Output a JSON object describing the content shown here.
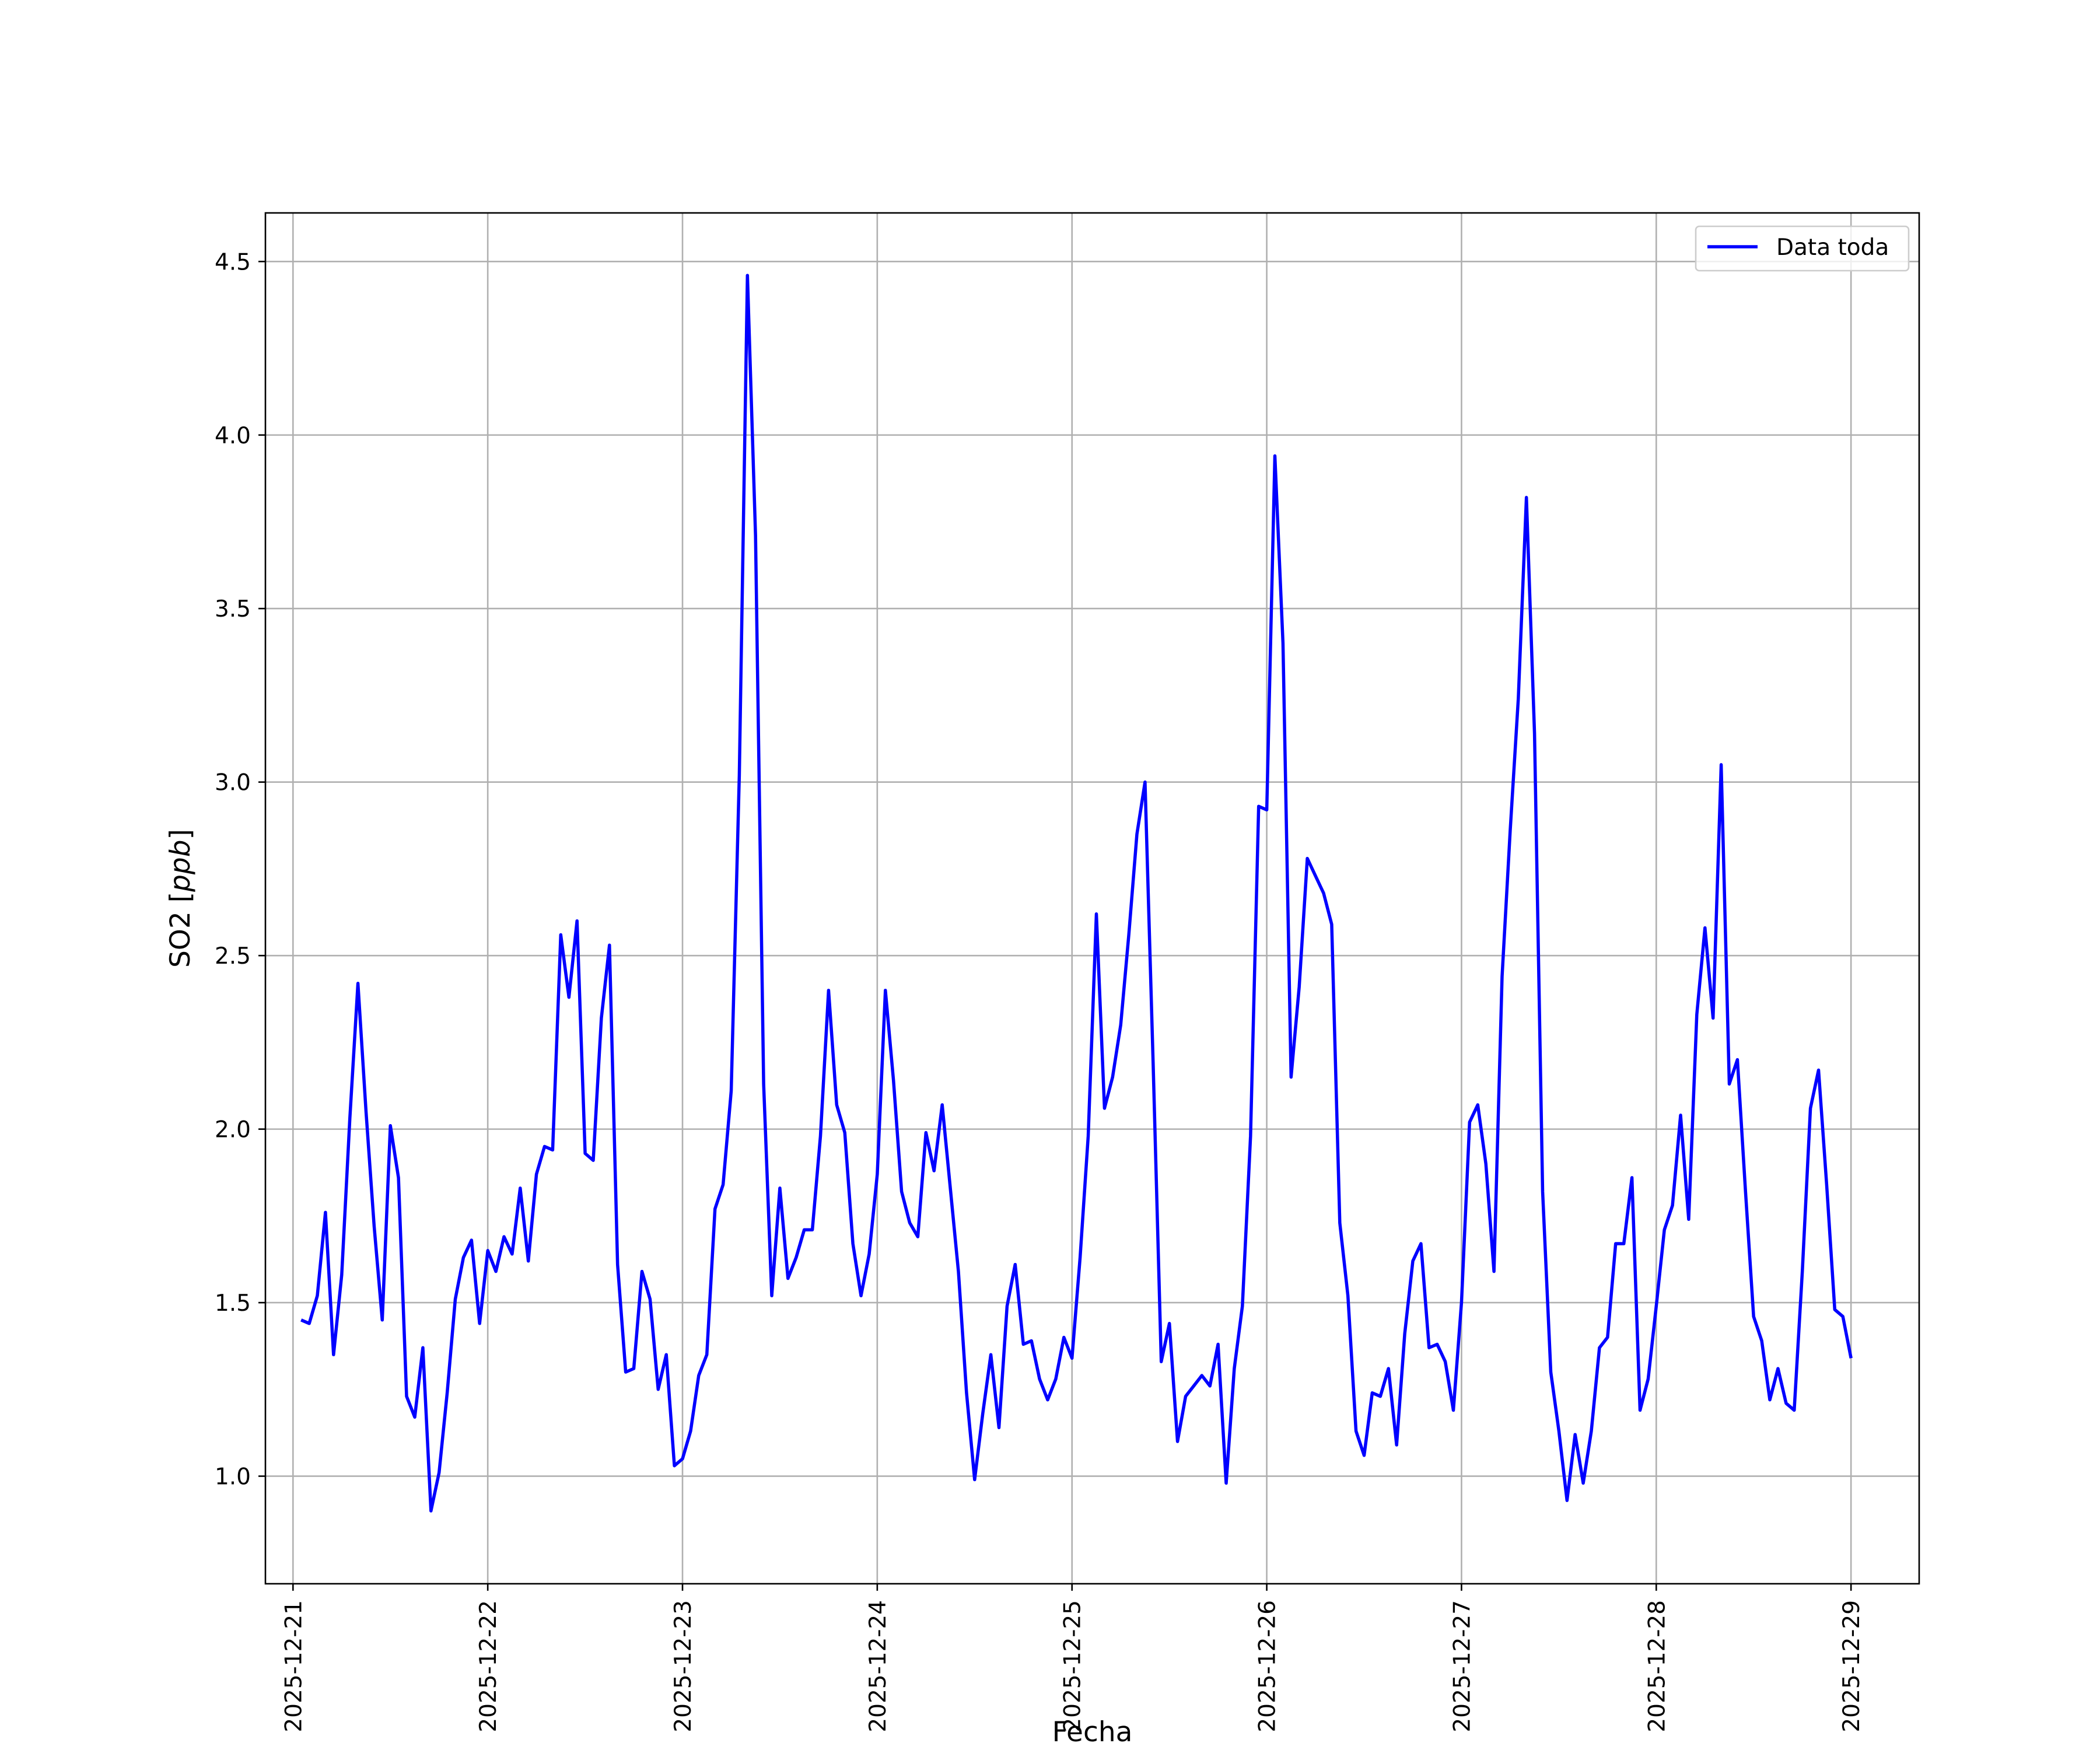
{
  "chart_data": {
    "type": "line",
    "title": "",
    "xlabel": "Fecha",
    "ylabel": "SO2 [ppb]",
    "ylabel_parts": {
      "plain": "SO2 [",
      "italic": "ppb",
      "close": "]"
    },
    "xlim": [
      "2025-12-20T20:36",
      "2025-12-29T08:24"
    ],
    "ylim": [
      0.69,
      4.64
    ],
    "grid": true,
    "legend_position": "upper-right",
    "x_ticks": [
      "2025-12-21",
      "2025-12-22",
      "2025-12-23",
      "2025-12-24",
      "2025-12-25",
      "2025-12-26",
      "2025-12-27",
      "2025-12-28",
      "2025-12-29"
    ],
    "y_ticks": [
      1.0,
      1.5,
      2.0,
      2.5,
      3.0,
      3.5,
      4.0,
      4.5
    ],
    "y_tick_labels": [
      "1.0",
      "1.5",
      "2.0",
      "2.5",
      "3.0",
      "3.5",
      "4.0",
      "4.5"
    ],
    "colors": {
      "series": "#0000ff",
      "grid": "#b0b0b0"
    },
    "series": [
      {
        "name": "Data toda",
        "color": "#0000ff",
        "x": [
          "2025-12-21T01:00",
          "2025-12-21T02:00",
          "2025-12-21T03:00",
          "2025-12-21T04:00",
          "2025-12-21T05:00",
          "2025-12-21T06:00",
          "2025-12-21T07:00",
          "2025-12-21T08:00",
          "2025-12-21T09:00",
          "2025-12-21T10:00",
          "2025-12-21T11:00",
          "2025-12-21T12:00",
          "2025-12-21T13:00",
          "2025-12-21T14:00",
          "2025-12-21T15:00",
          "2025-12-21T16:00",
          "2025-12-21T17:00",
          "2025-12-21T18:00",
          "2025-12-21T19:00",
          "2025-12-21T20:00",
          "2025-12-21T21:00",
          "2025-12-21T22:00",
          "2025-12-21T23:00",
          "2025-12-22T00:00",
          "2025-12-22T01:00",
          "2025-12-22T02:00",
          "2025-12-22T03:00",
          "2025-12-22T04:00",
          "2025-12-22T05:00",
          "2025-12-22T06:00",
          "2025-12-22T07:00",
          "2025-12-22T08:00",
          "2025-12-22T09:00",
          "2025-12-22T10:00",
          "2025-12-22T11:00",
          "2025-12-22T12:00",
          "2025-12-22T13:00",
          "2025-12-22T14:00",
          "2025-12-22T15:00",
          "2025-12-22T16:00",
          "2025-12-22T17:00",
          "2025-12-22T18:00",
          "2025-12-22T19:00",
          "2025-12-22T20:00",
          "2025-12-22T21:00",
          "2025-12-22T22:00",
          "2025-12-22T23:00",
          "2025-12-23T00:00",
          "2025-12-23T01:00",
          "2025-12-23T02:00",
          "2025-12-23T03:00",
          "2025-12-23T04:00",
          "2025-12-23T05:00",
          "2025-12-23T06:00",
          "2025-12-23T07:00",
          "2025-12-23T08:00",
          "2025-12-23T09:00",
          "2025-12-23T10:00",
          "2025-12-23T11:00",
          "2025-12-23T12:00",
          "2025-12-23T13:00",
          "2025-12-23T14:00",
          "2025-12-23T15:00",
          "2025-12-23T16:00",
          "2025-12-23T17:00",
          "2025-12-23T18:00",
          "2025-12-23T19:00",
          "2025-12-23T20:00",
          "2025-12-23T21:00",
          "2025-12-23T22:00",
          "2025-12-23T23:00",
          "2025-12-24T00:00",
          "2025-12-24T01:00",
          "2025-12-24T02:00",
          "2025-12-24T03:00",
          "2025-12-24T04:00",
          "2025-12-24T05:00",
          "2025-12-24T06:00",
          "2025-12-24T07:00",
          "2025-12-24T08:00",
          "2025-12-24T09:00",
          "2025-12-24T10:00",
          "2025-12-24T11:00",
          "2025-12-24T12:00",
          "2025-12-24T13:00",
          "2025-12-24T14:00",
          "2025-12-24T15:00",
          "2025-12-24T16:00",
          "2025-12-24T17:00",
          "2025-12-24T18:00",
          "2025-12-24T19:00",
          "2025-12-24T20:00",
          "2025-12-24T21:00",
          "2025-12-24T22:00",
          "2025-12-24T23:00",
          "2025-12-25T00:00",
          "2025-12-25T01:00",
          "2025-12-25T02:00",
          "2025-12-25T03:00",
          "2025-12-25T04:00",
          "2025-12-25T05:00",
          "2025-12-25T06:00",
          "2025-12-25T07:00",
          "2025-12-25T08:00",
          "2025-12-25T09:00",
          "2025-12-25T10:00",
          "2025-12-25T11:00",
          "2025-12-25T12:00",
          "2025-12-25T13:00",
          "2025-12-25T14:00",
          "2025-12-25T15:00",
          "2025-12-25T16:00",
          "2025-12-25T17:00",
          "2025-12-25T18:00",
          "2025-12-25T19:00",
          "2025-12-25T20:00",
          "2025-12-25T21:00",
          "2025-12-25T22:00",
          "2025-12-25T23:00",
          "2025-12-26T00:00",
          "2025-12-26T01:00",
          "2025-12-26T02:00",
          "2025-12-26T03:00",
          "2025-12-26T04:00",
          "2025-12-26T05:00",
          "2025-12-26T06:00",
          "2025-12-26T07:00",
          "2025-12-26T08:00",
          "2025-12-26T09:00",
          "2025-12-26T10:00",
          "2025-12-26T11:00",
          "2025-12-26T12:00",
          "2025-12-26T13:00",
          "2025-12-26T14:00",
          "2025-12-26T15:00",
          "2025-12-26T16:00",
          "2025-12-26T17:00",
          "2025-12-26T18:00",
          "2025-12-26T19:00",
          "2025-12-26T20:00",
          "2025-12-26T21:00",
          "2025-12-26T22:00",
          "2025-12-26T23:00",
          "2025-12-27T00:00",
          "2025-12-27T01:00",
          "2025-12-27T02:00",
          "2025-12-27T03:00",
          "2025-12-27T04:00",
          "2025-12-27T05:00",
          "2025-12-27T06:00",
          "2025-12-27T07:00",
          "2025-12-27T08:00",
          "2025-12-27T09:00",
          "2025-12-27T10:00",
          "2025-12-27T11:00",
          "2025-12-27T12:00",
          "2025-12-27T13:00",
          "2025-12-27T14:00",
          "2025-12-27T15:00",
          "2025-12-27T16:00",
          "2025-12-27T17:00",
          "2025-12-27T18:00",
          "2025-12-27T19:00",
          "2025-12-27T20:00",
          "2025-12-27T21:00",
          "2025-12-27T22:00",
          "2025-12-27T23:00",
          "2025-12-28T00:00",
          "2025-12-28T01:00",
          "2025-12-28T02:00",
          "2025-12-28T03:00",
          "2025-12-28T04:00",
          "2025-12-28T05:00",
          "2025-12-28T06:00",
          "2025-12-28T07:00",
          "2025-12-28T08:00",
          "2025-12-28T09:00",
          "2025-12-28T10:00",
          "2025-12-28T11:00",
          "2025-12-28T12:00",
          "2025-12-28T13:00",
          "2025-12-28T14:00",
          "2025-12-28T15:00",
          "2025-12-28T16:00",
          "2025-12-28T17:00",
          "2025-12-28T18:00",
          "2025-12-28T19:00",
          "2025-12-28T20:00",
          "2025-12-28T21:00",
          "2025-12-28T22:00",
          "2025-12-28T23:00",
          "2025-12-29T00:00"
        ],
        "values": [
          1.45,
          1.44,
          1.52,
          1.76,
          1.35,
          1.58,
          2.03,
          2.42,
          2.05,
          1.72,
          1.45,
          2.01,
          1.86,
          1.23,
          1.17,
          1.37,
          0.9,
          1.01,
          1.24,
          1.51,
          1.63,
          1.68,
          1.44,
          1.65,
          1.59,
          1.69,
          1.64,
          1.83,
          1.62,
          1.87,
          1.95,
          1.94,
          2.56,
          2.38,
          2.6,
          1.93,
          1.91,
          2.32,
          2.53,
          1.61,
          1.3,
          1.31,
          1.59,
          1.51,
          1.25,
          1.35,
          1.03,
          1.05,
          1.13,
          1.29,
          1.35,
          1.77,
          1.84,
          2.11,
          3.02,
          4.46,
          3.71,
          2.13,
          1.52,
          1.83,
          1.57,
          1.63,
          1.71,
          1.71,
          1.98,
          2.4,
          2.07,
          1.99,
          1.67,
          1.52,
          1.64,
          1.87,
          2.4,
          2.14,
          1.82,
          1.73,
          1.69,
          1.99,
          1.88,
          2.07,
          1.83,
          1.59,
          1.24,
          0.99,
          1.18,
          1.35,
          1.14,
          1.49,
          1.61,
          1.38,
          1.39,
          1.28,
          1.22,
          1.28,
          1.4,
          1.34,
          1.63,
          1.98,
          2.62,
          2.06,
          2.15,
          2.3,
          2.56,
          2.85,
          3.0,
          2.19,
          1.33,
          1.44,
          1.1,
          1.23,
          1.26,
          1.29,
          1.26,
          1.38,
          0.98,
          1.31,
          1.49,
          1.98,
          2.93,
          2.92,
          3.94,
          3.4,
          2.15,
          2.41,
          2.78,
          2.73,
          2.68,
          2.59,
          1.73,
          1.52,
          1.13,
          1.06,
          1.24,
          1.23,
          1.31,
          1.09,
          1.41,
          1.62,
          1.67,
          1.37,
          1.38,
          1.33,
          1.19,
          1.5,
          2.02,
          2.07,
          1.9,
          1.59,
          2.44,
          2.86,
          3.24,
          3.82,
          3.14,
          1.82,
          1.3,
          1.13,
          0.93,
          1.12,
          0.98,
          1.13,
          1.37,
          1.4,
          1.67,
          1.67,
          1.86,
          1.19,
          1.28,
          1.49,
          1.71,
          1.78,
          2.04,
          1.74,
          2.33,
          2.58,
          2.32,
          3.05,
          2.13,
          2.2,
          1.82,
          1.46,
          1.39,
          1.22,
          1.31,
          1.21,
          1.19,
          1.59,
          2.06,
          2.17,
          1.84,
          1.48,
          1.46,
          1.34
        ]
      }
    ]
  }
}
